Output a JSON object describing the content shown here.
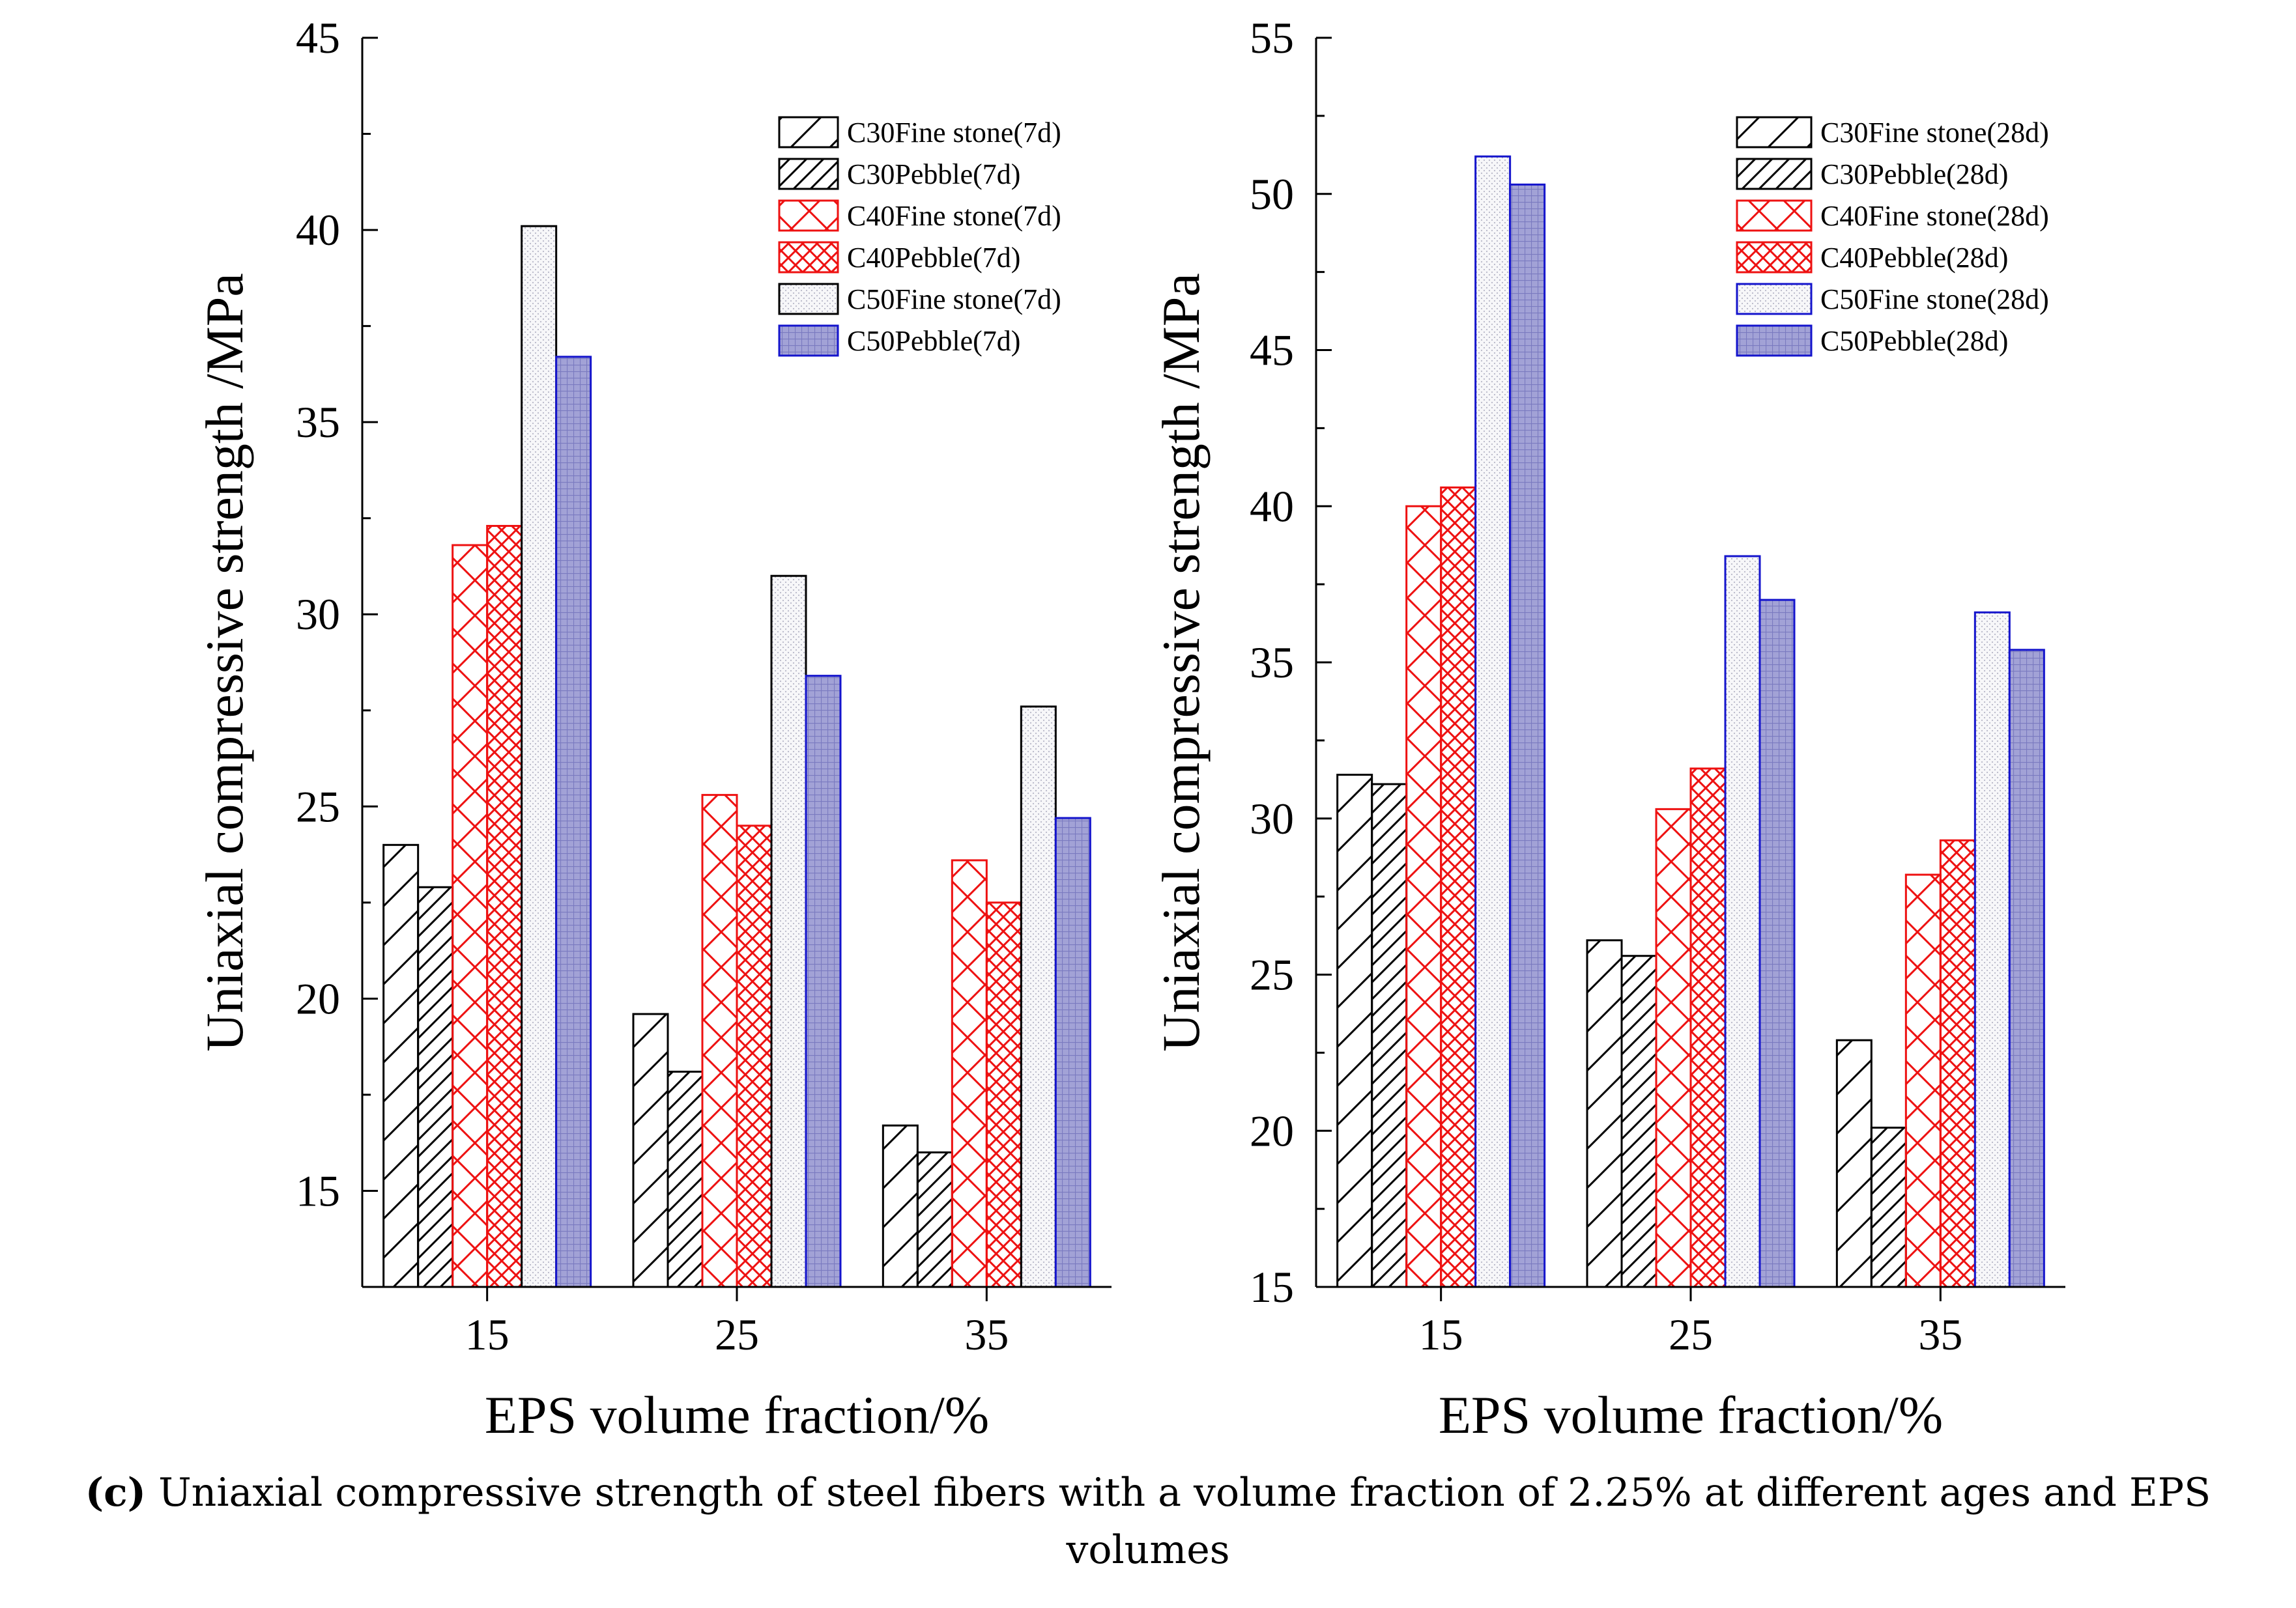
{
  "caption": {
    "label": "c",
    "text": " Uniaxial compressive strength of steel fibers with a volume fraction of 2.25% at different ages and EPS volumes"
  },
  "chart_data": [
    {
      "type": "bar",
      "title": "",
      "xlabel": "EPS volume fraction/%",
      "ylabel": "Uniaxial compressive strength /MPa",
      "categories": [
        "15",
        "25",
        "35"
      ],
      "ylim": [
        12.5,
        45
      ],
      "yticks": [
        15,
        20,
        25,
        30,
        35,
        40,
        45
      ],
      "legend_position": "top-right",
      "series": [
        {
          "name": "C30Fine stone(7d)",
          "values": [
            24.0,
            19.6,
            16.7
          ],
          "color": "#000000",
          "pattern": "hatch-wide"
        },
        {
          "name": "C30Pebble(7d)",
          "values": [
            22.9,
            18.1,
            16.0
          ],
          "color": "#000000",
          "pattern": "hatch-dense"
        },
        {
          "name": "C40Fine stone(7d)",
          "values": [
            31.8,
            25.3,
            23.6
          ],
          "color": "#ee1111",
          "pattern": "cross-wide"
        },
        {
          "name": "C40Pebble(7d)",
          "values": [
            32.3,
            24.5,
            22.5
          ],
          "color": "#ee1111",
          "pattern": "cross-dense"
        },
        {
          "name": "C50Fine stone(7d)",
          "values": [
            40.1,
            31.0,
            27.6
          ],
          "color": "#000000",
          "pattern": "dots-light"
        },
        {
          "name": "C50Pebble(7d)",
          "values": [
            36.7,
            28.4,
            24.7
          ],
          "color": "#1414cc",
          "pattern": "grid-fill"
        }
      ]
    },
    {
      "type": "bar",
      "title": "",
      "xlabel": "EPS volume fraction/%",
      "ylabel": "Uniaxial compressive strength /MPa",
      "categories": [
        "15",
        "25",
        "35"
      ],
      "ylim": [
        15,
        55
      ],
      "yticks": [
        15,
        20,
        25,
        30,
        35,
        40,
        45,
        50,
        55
      ],
      "legend_position": "top-right",
      "series": [
        {
          "name": "C30Fine stone(28d)",
          "values": [
            31.4,
            26.1,
            22.9
          ],
          "color": "#000000",
          "pattern": "hatch-wide"
        },
        {
          "name": "C30Pebble(28d)",
          "values": [
            31.1,
            25.6,
            20.1
          ],
          "color": "#000000",
          "pattern": "hatch-dense"
        },
        {
          "name": "C40Fine stone(28d)",
          "values": [
            40.0,
            30.3,
            28.2
          ],
          "color": "#ee1111",
          "pattern": "cross-wide"
        },
        {
          "name": "C40Pebble(28d)",
          "values": [
            40.6,
            31.6,
            29.3
          ],
          "color": "#ee1111",
          "pattern": "cross-dense"
        },
        {
          "name": "C50Fine stone(28d)",
          "values": [
            51.2,
            38.4,
            36.6
          ],
          "color": "#1414cc",
          "pattern": "dots-light"
        },
        {
          "name": "C50Pebble(28d)",
          "values": [
            50.3,
            37.0,
            35.4
          ],
          "color": "#1414cc",
          "pattern": "grid-fill"
        }
      ]
    }
  ]
}
